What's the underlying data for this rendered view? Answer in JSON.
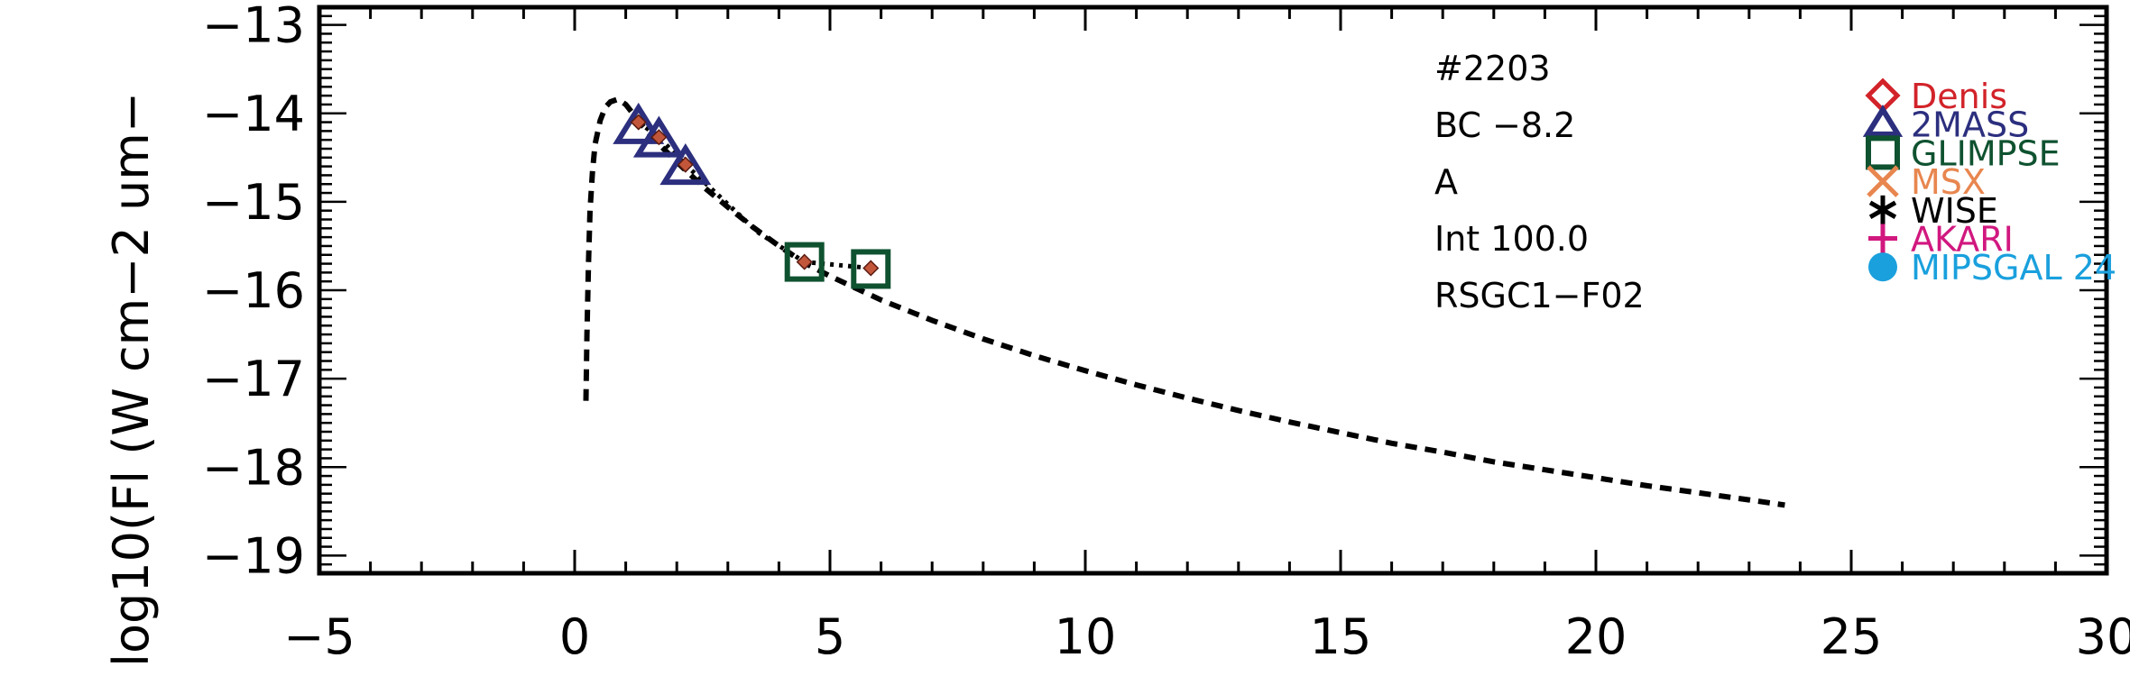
{
  "chart_data": {
    "type": "line",
    "xlim": [
      -5,
      30
    ],
    "ylim": [
      -19.2,
      -12.8
    ],
    "x_ticks": [
      -5,
      0,
      5,
      10,
      15,
      20,
      25,
      30
    ],
    "x_tick_labels": [
      "−5",
      "0",
      "5",
      "10",
      "15",
      "20",
      "25",
      "30"
    ],
    "y_ticks": [
      -13,
      -14,
      -15,
      -16,
      -17,
      -18,
      -19
    ],
    "y_tick_labels": [
      "−13",
      "−14",
      "−15",
      "−16",
      "−17",
      "−18",
      "−19"
    ],
    "ylabel": "log10(Fl (W cm−2 um−",
    "xlabel": "",
    "annotations": [
      "#2203",
      "BC −8.2",
      "A",
      "Int 100.0",
      "RSGC1−F02"
    ],
    "model_curve": {
      "style": "dashed",
      "color": "#000000",
      "x": [
        0.22,
        0.24,
        0.27,
        0.3,
        0.35,
        0.4,
        0.5,
        0.6,
        0.7,
        0.85,
        1.0,
        1.3,
        1.6,
        2.0,
        2.5,
        3.0,
        3.5,
        4.0,
        4.5,
        5.0,
        6.0,
        7.0,
        8.0,
        9.0,
        10.0,
        11.0,
        12.0,
        13.0,
        14.0,
        15.0,
        16.0,
        17.0,
        18.0,
        19.0,
        20.0,
        21.0,
        22.0,
        23.0,
        23.7
      ],
      "y": [
        -17.25,
        -16.5,
        -15.7,
        -15.1,
        -14.65,
        -14.35,
        -14.08,
        -13.93,
        -13.87,
        -13.84,
        -13.9,
        -14.12,
        -14.32,
        -14.55,
        -14.82,
        -15.06,
        -15.29,
        -15.5,
        -15.69,
        -15.84,
        -16.11,
        -16.34,
        -16.55,
        -16.74,
        -16.91,
        -17.07,
        -17.22,
        -17.36,
        -17.49,
        -17.61,
        -17.73,
        -17.83,
        -17.94,
        -18.03,
        -18.12,
        -18.21,
        -18.29,
        -18.37,
        -18.43
      ]
    },
    "observed_curve": {
      "style": "dotted",
      "color": "#000000",
      "x": [
        1.25,
        1.65,
        2.17,
        3.6,
        4.5,
        5.8
      ],
      "y": [
        -14.1,
        -14.27,
        -14.58,
        -15.35,
        -15.68,
        -15.75
      ]
    },
    "series": [
      {
        "name": "2MASS",
        "marker": "triangle",
        "color": "#2c2f7e",
        "x": [
          1.25,
          1.65,
          2.17
        ],
        "y": [
          -14.12,
          -14.27,
          -14.58
        ]
      },
      {
        "name": "GLIMPSE",
        "marker": "square",
        "color": "#0f5230",
        "x": [
          4.5,
          5.8
        ],
        "y": [
          -15.68,
          -15.76
        ]
      },
      {
        "name": "points",
        "marker": "small-diamond",
        "color": "#c2563b",
        "x": [
          1.25,
          1.65,
          2.17,
          4.5,
          5.8
        ],
        "y": [
          -14.1,
          -14.27,
          -14.58,
          -15.68,
          -15.75
        ]
      }
    ],
    "legend": {
      "placement": "right",
      "entries": [
        {
          "label": "Denis",
          "marker": "diamond",
          "color": "#d2232a"
        },
        {
          "label": "2MASS",
          "marker": "triangle",
          "color": "#2c2f7e"
        },
        {
          "label": "GLIMPSE",
          "marker": "square",
          "color": "#0f5230"
        },
        {
          "label": "MSX",
          "marker": "x",
          "color": "#e8864f"
        },
        {
          "label": "WISE",
          "marker": "asterisk",
          "color": "#000000"
        },
        {
          "label": "AKARI",
          "marker": "plus",
          "color": "#d1187f"
        },
        {
          "label": "MIPSGAL 24",
          "marker": "circle",
          "color": "#1aa0dd"
        }
      ]
    }
  }
}
